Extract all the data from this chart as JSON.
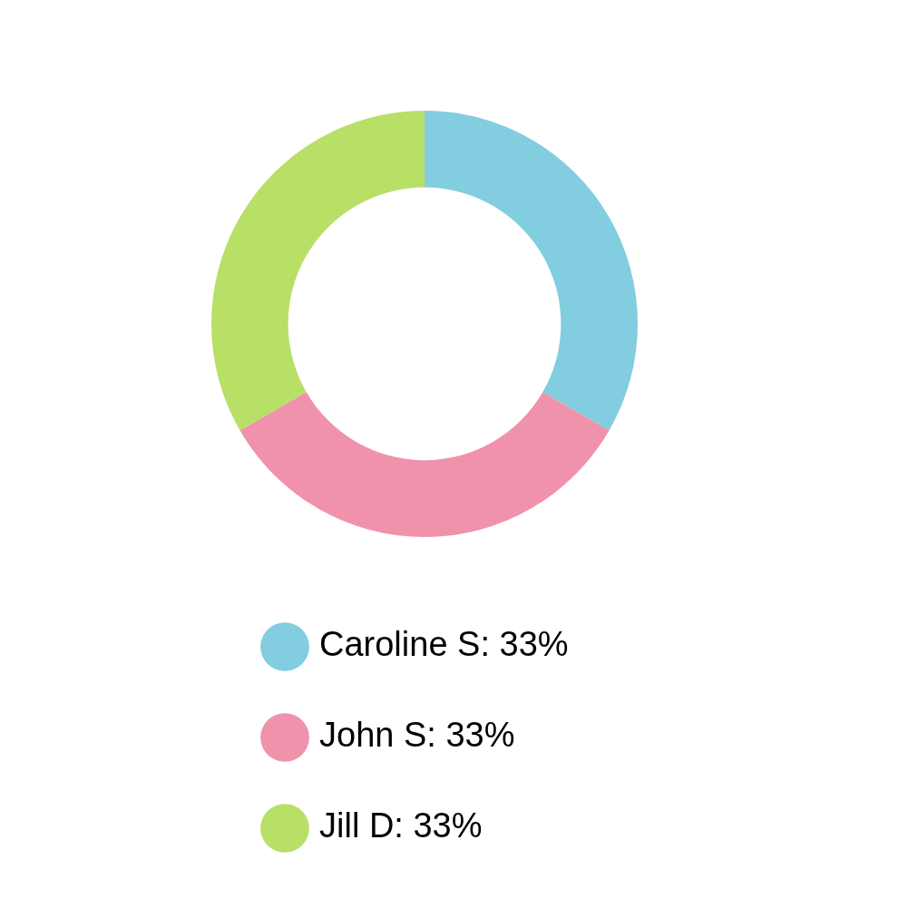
{
  "chart_data": {
    "type": "donut",
    "categories": [
      "Caroline S",
      "John S",
      "Jill D"
    ],
    "values": [
      33,
      33,
      33
    ],
    "value_labels": [
      "33%",
      "33%",
      "33%"
    ],
    "colors": [
      "#82cde0",
      "#f092ab",
      "#b8df66"
    ],
    "legend": "bottom"
  }
}
